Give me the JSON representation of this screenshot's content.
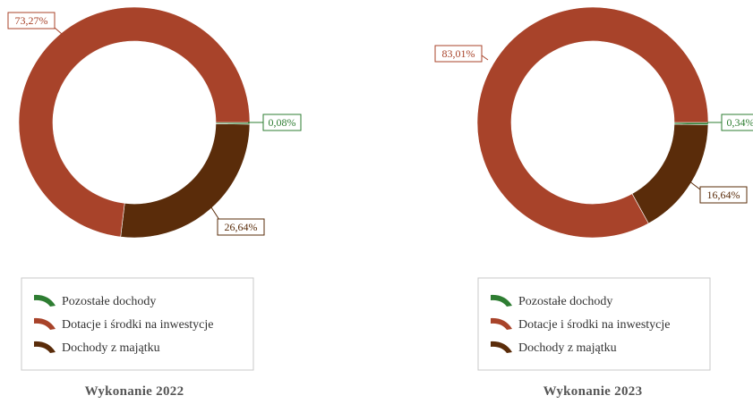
{
  "colors": {
    "pozostale": "#2e7d32",
    "dotacje": "#a8432a",
    "majatek": "#5a2c0a",
    "legend_border": "#c8c8c8"
  },
  "legend": {
    "items": [
      {
        "key": "pozostale",
        "label": "Pozostałe dochody",
        "icon": "arc-swatch-icon"
      },
      {
        "key": "dotacje",
        "label": "Dotacje i środki na inwestycje",
        "icon": "arc-swatch-icon"
      },
      {
        "key": "majatek",
        "label": "Dochody z majątku",
        "icon": "arc-swatch-icon"
      }
    ]
  },
  "chart_data": [
    {
      "type": "pie",
      "variant": "donut",
      "title": "Wykonanie 2022",
      "slices": [
        {
          "key": "pozostale",
          "label": "Pozostałe dochody",
          "value": 0.08,
          "value_label": "0,08%"
        },
        {
          "key": "majatek",
          "label": "Dochody z majątku",
          "value": 26.64,
          "value_label": "26,64%"
        },
        {
          "key": "dotacje",
          "label": "Dotacje i środki na inwestycje",
          "value": 73.27,
          "value_label": "73,27%"
        }
      ]
    },
    {
      "type": "pie",
      "variant": "donut",
      "title": "Wykonanie 2023",
      "slices": [
        {
          "key": "pozostale",
          "label": "Pozostałe dochody",
          "value": 0.34,
          "value_label": "0,34%"
        },
        {
          "key": "majatek",
          "label": "Dochody z majątku",
          "value": 16.64,
          "value_label": "16,64%"
        },
        {
          "key": "dotacje",
          "label": "Dotacje i środki na inwestycje",
          "value": 83.01,
          "value_label": "83,01%"
        }
      ]
    }
  ]
}
